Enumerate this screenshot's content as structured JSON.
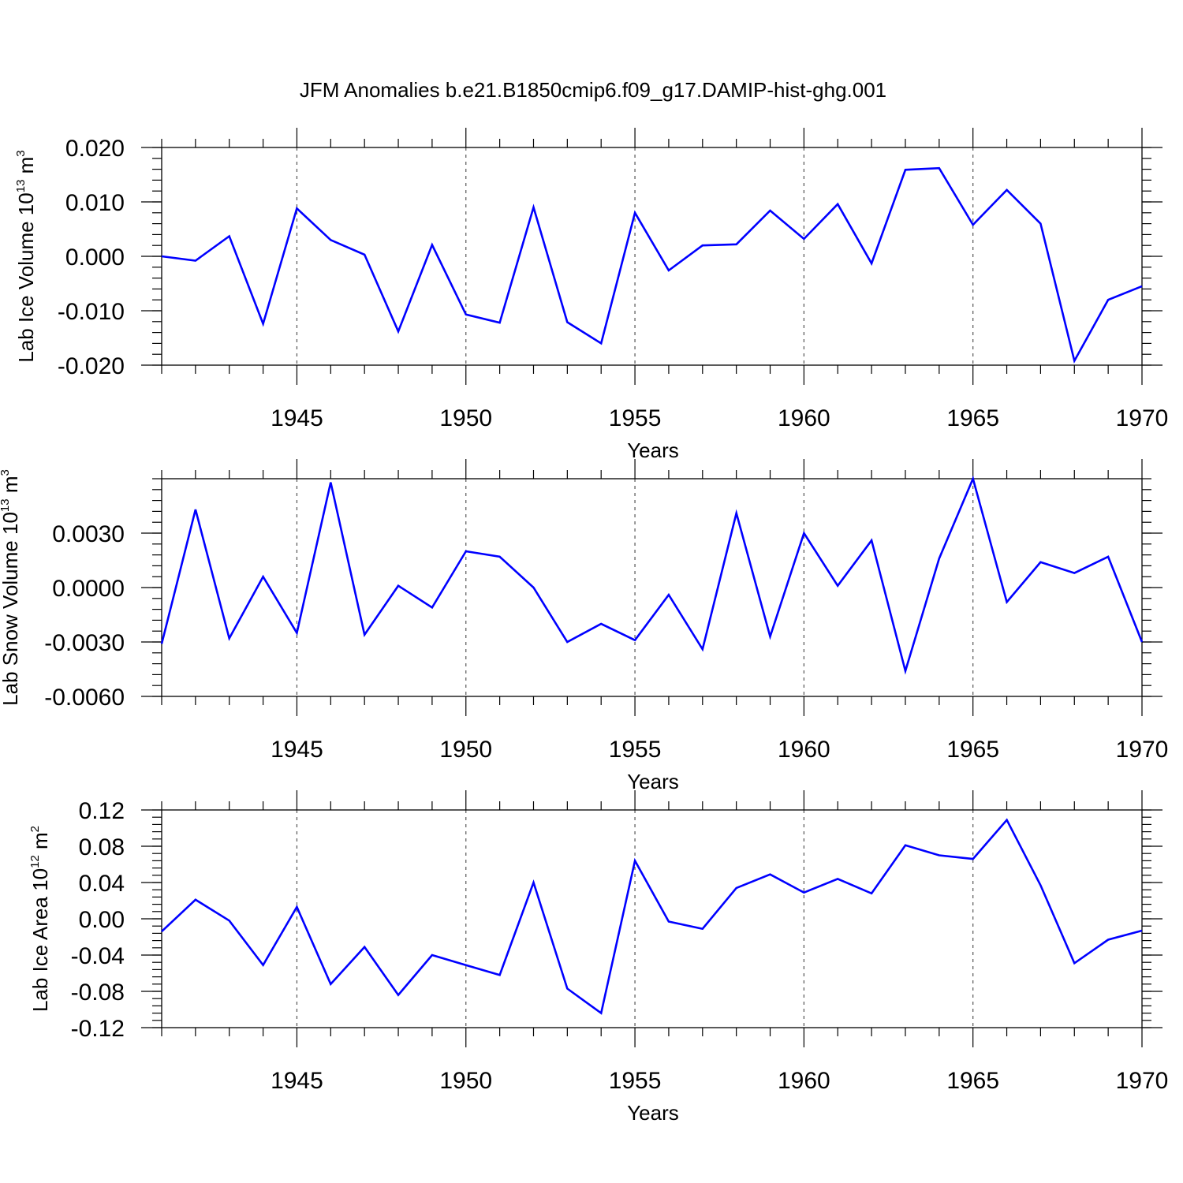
{
  "title": "JFM Anomalies b.e21.B1850cmip6.f09_g17.DAMIP-hist-ghg.001",
  "colors": {
    "line": "#0000ff",
    "axes": "#000000",
    "grid": "#555555"
  },
  "chart_data": [
    {
      "type": "line",
      "title": "JFM Anomalies b.e21.B1850cmip6.f09_g17.DAMIP-hist-ghg.001",
      "ylabel": {
        "main": "Lab Ice Volume 10",
        "exp": "13",
        "unit": " m",
        "unit_exp": "3"
      },
      "xlabel": "Years",
      "xlim": [
        1941,
        1970
      ],
      "ylim": [
        -0.02,
        0.02
      ],
      "xticks": [
        1945,
        1950,
        1955,
        1960,
        1965,
        1970
      ],
      "xtick_labels": [
        "1945",
        "1950",
        "1955",
        "1960",
        "1965",
        "1970"
      ],
      "yticks": [
        -0.02,
        -0.01,
        0.0,
        0.01,
        0.02
      ],
      "ytick_labels": [
        "-0.020",
        "-0.010",
        "0.000",
        "0.010",
        "0.020"
      ],
      "y_minor_step": 0.002,
      "grid": "vertical dashed at major x ticks",
      "x": [
        1941,
        1942,
        1943,
        1944,
        1945,
        1946,
        1947,
        1948,
        1949,
        1950,
        1951,
        1952,
        1953,
        1954,
        1955,
        1956,
        1957,
        1958,
        1959,
        1960,
        1961,
        1962,
        1963,
        1964,
        1965,
        1966,
        1967,
        1968,
        1969,
        1970
      ],
      "series": [
        {
          "name": "Lab Ice Volume",
          "values": [
            0.0,
            -0.0008,
            0.0037,
            -0.0124,
            0.0088,
            0.003,
            0.0003,
            -0.0138,
            0.0021,
            -0.0107,
            -0.0122,
            0.009,
            -0.0121,
            -0.016,
            0.008,
            -0.0026,
            0.002,
            0.0022,
            0.0084,
            0.0032,
            0.0096,
            -0.0013,
            0.0159,
            0.0162,
            0.0058,
            0.0122,
            0.006,
            -0.0192,
            -0.008,
            -0.0055
          ]
        }
      ]
    },
    {
      "type": "line",
      "ylabel": {
        "main": "Lab Snow Volume 10",
        "exp": "13",
        "unit": " m",
        "unit_exp": "3"
      },
      "xlabel": "Years",
      "xlim": [
        1941,
        1970
      ],
      "ylim": [
        -0.006,
        0.006
      ],
      "xticks": [
        1945,
        1950,
        1955,
        1960,
        1965,
        1970
      ],
      "xtick_labels": [
        "1945",
        "1950",
        "1955",
        "1960",
        "1965",
        "1970"
      ],
      "yticks": [
        -0.006,
        -0.003,
        0.0,
        0.003
      ],
      "ytick_labels": [
        "-0.0060",
        "-0.0030",
        "0.0000",
        "0.0030"
      ],
      "y_minor_step": 0.0006,
      "grid": "vertical dashed at major x ticks",
      "x": [
        1941,
        1942,
        1943,
        1944,
        1945,
        1946,
        1947,
        1948,
        1949,
        1950,
        1951,
        1952,
        1953,
        1954,
        1955,
        1956,
        1957,
        1958,
        1959,
        1960,
        1961,
        1962,
        1963,
        1964,
        1965,
        1966,
        1967,
        1968,
        1969,
        1970
      ],
      "series": [
        {
          "name": "Lab Snow Volume",
          "values": [
            -0.0031,
            0.0043,
            -0.0028,
            0.0006,
            -0.0025,
            0.0058,
            -0.0026,
            0.0001,
            -0.0011,
            0.002,
            0.0017,
            0.0,
            -0.003,
            -0.002,
            -0.0029,
            -0.0004,
            -0.0034,
            0.0041,
            -0.0027,
            0.003,
            0.0001,
            0.0026,
            -0.0046,
            0.0016,
            0.006,
            -0.0008,
            0.0014,
            0.0008,
            0.0017,
            -0.003
          ]
        }
      ]
    },
    {
      "type": "line",
      "ylabel": {
        "main": "Lab Ice Area 10",
        "exp": "12",
        "unit": " m",
        "unit_exp": "2"
      },
      "xlabel": "Years",
      "xlim": [
        1941,
        1970
      ],
      "ylim": [
        -0.12,
        0.12
      ],
      "xticks": [
        1945,
        1950,
        1955,
        1960,
        1965,
        1970
      ],
      "xtick_labels": [
        "1945",
        "1950",
        "1955",
        "1960",
        "1965",
        "1970"
      ],
      "yticks": [
        -0.12,
        -0.08,
        -0.04,
        0.0,
        0.04,
        0.08,
        0.12
      ],
      "ytick_labels": [
        "-0.12",
        "-0.08",
        "-0.04",
        "0.00",
        "0.04",
        "0.08",
        "0.12"
      ],
      "y_minor_step": 0.008,
      "grid": "vertical dashed at major x ticks",
      "x": [
        1941,
        1942,
        1943,
        1944,
        1945,
        1946,
        1947,
        1948,
        1949,
        1950,
        1951,
        1952,
        1953,
        1954,
        1955,
        1956,
        1957,
        1958,
        1959,
        1960,
        1961,
        1962,
        1963,
        1964,
        1965,
        1966,
        1967,
        1968,
        1969,
        1970
      ],
      "series": [
        {
          "name": "Lab Ice Area",
          "values": [
            -0.014,
            0.021,
            -0.002,
            -0.051,
            0.013,
            -0.072,
            -0.031,
            -0.084,
            -0.04,
            -0.051,
            -0.062,
            0.04,
            -0.077,
            -0.104,
            0.064,
            -0.003,
            -0.011,
            0.034,
            0.049,
            0.029,
            0.044,
            0.028,
            0.081,
            0.07,
            0.066,
            0.109,
            0.037,
            -0.049,
            -0.023,
            -0.013
          ]
        }
      ]
    }
  ]
}
